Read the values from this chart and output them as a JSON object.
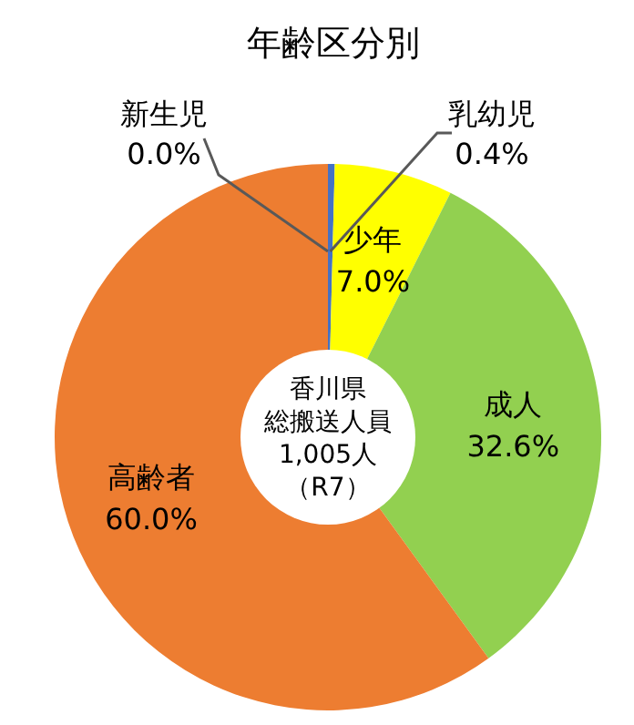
{
  "chart_data": {
    "type": "donut",
    "title": "年齢区分別",
    "categories": [
      "新生児",
      "乳幼児",
      "少年",
      "成人",
      "高齢者"
    ],
    "values": [
      0.0,
      0.4,
      7.0,
      32.6,
      60.0
    ],
    "value_labels": [
      "0.0%",
      "0.4%",
      "7.0%",
      "32.6%",
      "60.0%"
    ],
    "colors": [
      "#1f3864",
      "#4472c4",
      "#ffff00",
      "#92d050",
      "#ed7d31"
    ],
    "annotations": [
      "香川県",
      "総搬送人員",
      "1,005人",
      "（R7）"
    ]
  }
}
